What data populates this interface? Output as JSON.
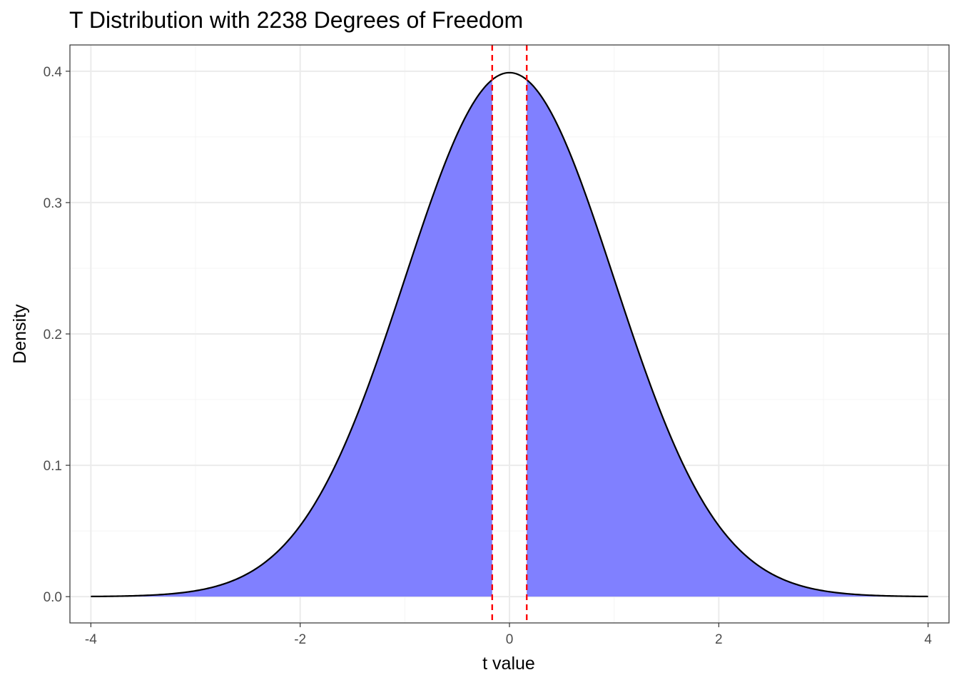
{
  "chart_data": {
    "type": "area",
    "title": "T Distribution with 2238 Degrees of Freedom",
    "xlabel": "t value",
    "ylabel": "Density",
    "degrees_of_freedom": 2238,
    "xlim": [
      -4.2,
      4.2
    ],
    "ylim": [
      -0.02,
      0.42
    ],
    "x_ticks": [
      -4,
      -2,
      0,
      2,
      4
    ],
    "x_tick_labels": [
      "-4",
      "-2",
      "0",
      "2",
      "4"
    ],
    "y_ticks": [
      0.0,
      0.1,
      0.2,
      0.3,
      0.4
    ],
    "y_tick_labels": [
      "0.0",
      "0.1",
      "0.2",
      "0.3",
      "0.4"
    ],
    "x_range": [
      -4,
      4
    ],
    "critical_values": [
      -0.165,
      0.165
    ],
    "shaded_regions": [
      [
        -4,
        -0.165
      ],
      [
        0.165,
        4
      ]
    ],
    "grid": true,
    "colors": {
      "fill": "#8080ff",
      "curve": "#000000",
      "critical_line": "#ff0000",
      "grid_major": "#ebebeb",
      "grid_minor": "#f4f4f4",
      "panel_border": "#333333"
    }
  }
}
